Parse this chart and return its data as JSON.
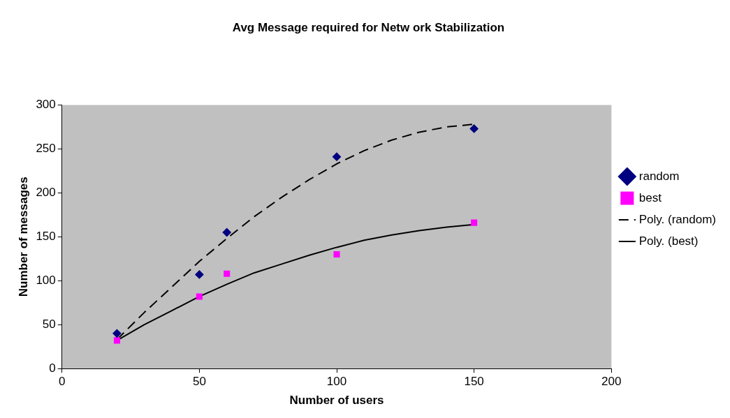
{
  "chart_data": {
    "type": "scatter",
    "title": "Avg Message required for Netw ork Stabilization",
    "xlabel": "Number of users",
    "ylabel": "Number of messages",
    "xlim": [
      0,
      200
    ],
    "xticks": [
      0,
      50,
      100,
      150,
      200
    ],
    "ylim": [
      0,
      300
    ],
    "yticks": [
      0,
      50,
      100,
      150,
      200,
      250,
      300
    ],
    "grid": false,
    "legend": "right",
    "series": [
      {
        "name": "random",
        "color": "#000080",
        "marker": "diamond",
        "x": [
          20,
          50,
          60,
          100,
          150
        ],
        "values": [
          40,
          107,
          155,
          241,
          273
        ]
      },
      {
        "name": "best",
        "color": "#ff00ff",
        "marker": "square",
        "x": [
          20,
          50,
          60,
          100,
          150
        ],
        "values": [
          32,
          82,
          108,
          130,
          166
        ]
      },
      {
        "name": "Poly. (random)",
        "type": "line",
        "color": "#000000",
        "marker": "none",
        "line_style": "dashed",
        "x": [
          20,
          30,
          40,
          50,
          60,
          70,
          80,
          90,
          100,
          110,
          120,
          130,
          140,
          150
        ],
        "values": [
          33,
          64,
          93,
          122,
          148,
          173,
          195,
          215,
          233,
          248,
          260,
          269,
          275,
          278
        ]
      },
      {
        "name": "Poly. (best)",
        "type": "line",
        "color": "#000000",
        "marker": "none",
        "line_style": "solid",
        "x": [
          20,
          30,
          40,
          50,
          60,
          70,
          80,
          90,
          100,
          110,
          120,
          130,
          140,
          150
        ],
        "values": [
          32,
          50,
          66,
          82,
          96,
          109,
          119,
          129,
          138,
          146,
          152,
          157,
          161,
          164
        ]
      }
    ]
  }
}
